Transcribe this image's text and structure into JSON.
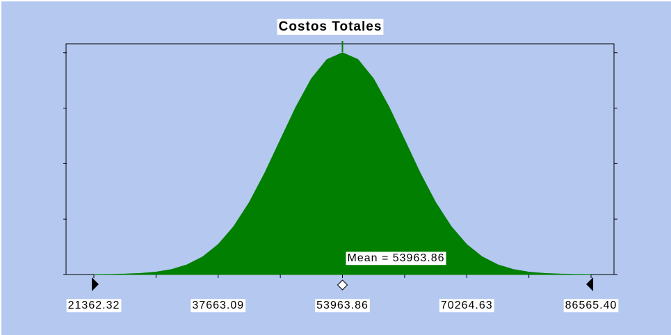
{
  "chart_data": {
    "type": "area",
    "title": "Costos Totales",
    "color": "#007f00",
    "x": [
      21362,
      23400,
      25437,
      27475,
      29513,
      31550,
      33588,
      35626,
      37663,
      39701,
      41739,
      43776,
      45814,
      47851,
      49889,
      51927,
      53964,
      56002,
      58040,
      60077,
      62115,
      64152,
      66190,
      68228,
      70265,
      72303,
      74341,
      76378,
      78416,
      80453,
      82491,
      84529,
      86565
    ],
    "values": [
      0.0003,
      0.0009,
      0.0022,
      0.0051,
      0.0111,
      0.0228,
      0.0439,
      0.0796,
      0.1353,
      0.2163,
      0.3247,
      0.4578,
      0.6065,
      0.7548,
      0.8825,
      0.9692,
      1,
      0.9692,
      0.8825,
      0.7548,
      0.6065,
      0.4578,
      0.3247,
      0.2163,
      0.1353,
      0.0796,
      0.0439,
      0.0228,
      0.0111,
      0.0051,
      0.0022,
      0.0009,
      0.0003
    ],
    "xlim": [
      17714,
      89573
    ],
    "xticks": [
      21362.32,
      37663.09,
      53963.86,
      70264.63,
      {
        "value": 86565.4,
        "label": "86565.40"
      }
    ],
    "xminor_ticks": [
      29512.7,
      45813.47,
      62114.25,
      78415.01
    ],
    "ylim": [
      0,
      1.04
    ],
    "yticks": [
      0,
      0.25,
      0.5,
      0.75,
      1
    ],
    "mean": 53963.86,
    "mean_label": "Mean = 53963.86"
  }
}
